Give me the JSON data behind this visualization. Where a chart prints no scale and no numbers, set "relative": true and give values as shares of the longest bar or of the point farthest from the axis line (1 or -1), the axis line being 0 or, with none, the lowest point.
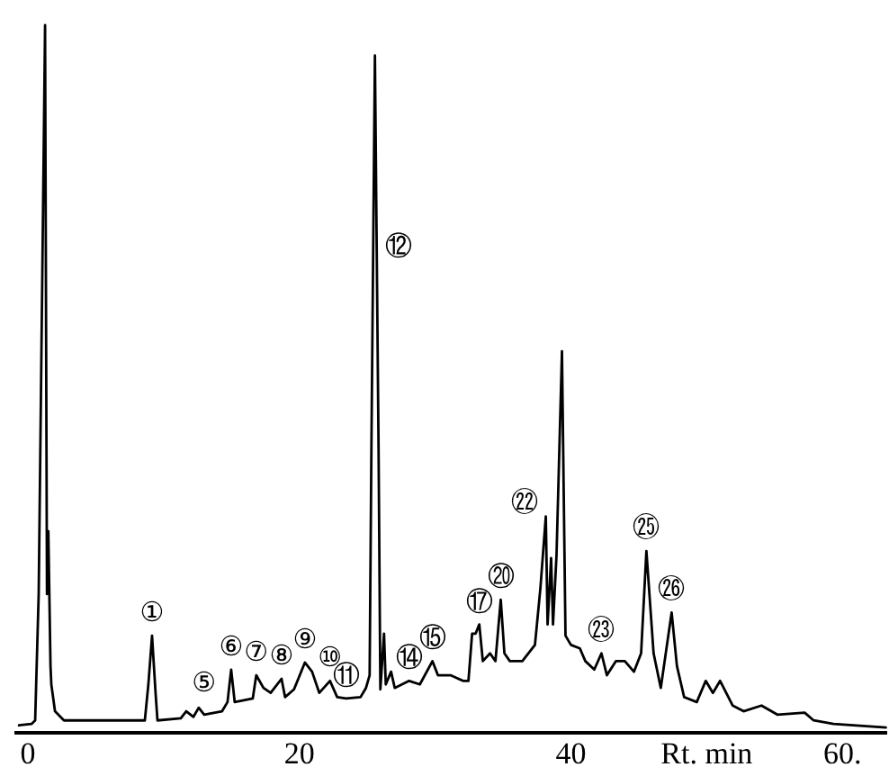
{
  "chart_data": {
    "type": "line",
    "relative": true,
    "xlabel": "Rt. min",
    "xlim": [
      -1,
      63.3
    ],
    "xticks": [
      0,
      20,
      40,
      {
        "value": 60,
        "label": "60."
      }
    ],
    "grid": false,
    "marker": "none",
    "line_style": "solid",
    "series": [
      {
        "color": "#000000",
        "x": [
          -0.66,
          0.26,
          0.53,
          0.79,
          1.06,
          1.26,
          1.4,
          1.5,
          1.66,
          1.72,
          1.99,
          2.65,
          8.61,
          8.87,
          9.14,
          9.4,
          9.54,
          11.26,
          11.66,
          12.19,
          12.58,
          12.98,
          14.3,
          14.7,
          14.97,
          15.23,
          16.56,
          16.82,
          17.35,
          17.88,
          18.68,
          18.94,
          19.6,
          20.4,
          20.93,
          21.46,
          22.25,
          22.78,
          23.44,
          24.5,
          24.9,
          25.17,
          25.3,
          25.56,
          25.7,
          25.83,
          25.96,
          26.23,
          26.36,
          26.75,
          27.02,
          28.08,
          28.87,
          29.8,
          30.2,
          31.13,
          32.05,
          32.45,
          32.72,
          32.98,
          33.25,
          33.51,
          34.04,
          34.44,
          34.83,
          35.1,
          35.5,
          36.42,
          37.35,
          37.75,
          38.15,
          38.28,
          38.54,
          38.68,
          38.94,
          39.34,
          39.6,
          40.0,
          40.66,
          41.06,
          41.72,
          42.25,
          42.65,
          43.31,
          43.97,
          44.64,
          45.17,
          45.56,
          46.09,
          46.62,
          47.42,
          47.81,
          48.34,
          49.27,
          49.93,
          50.46,
          50.99,
          51.92,
          52.72,
          54.04,
          55.23,
          57.22,
          57.88,
          59.34,
          63.2
        ],
        "values": [
          0.008,
          0.01,
          0.015,
          0.194,
          0.653,
          1.0,
          0.194,
          0.283,
          0.092,
          0.066,
          0.028,
          0.015,
          0.015,
          0.066,
          0.135,
          0.054,
          0.015,
          0.018,
          0.028,
          0.02,
          0.033,
          0.023,
          0.028,
          0.041,
          0.087,
          0.041,
          0.046,
          0.079,
          0.061,
          0.054,
          0.074,
          0.048,
          0.059,
          0.097,
          0.084,
          0.054,
          0.071,
          0.048,
          0.046,
          0.048,
          0.061,
          0.079,
          0.398,
          0.957,
          0.667,
          0.398,
          0.059,
          0.138,
          0.066,
          0.084,
          0.061,
          0.071,
          0.066,
          0.099,
          0.079,
          0.079,
          0.071,
          0.071,
          0.138,
          0.138,
          0.151,
          0.099,
          0.11,
          0.099,
          0.186,
          0.11,
          0.099,
          0.099,
          0.122,
          0.202,
          0.304,
          0.151,
          0.245,
          0.151,
          0.25,
          0.538,
          0.135,
          0.122,
          0.117,
          0.099,
          0.087,
          0.11,
          0.079,
          0.099,
          0.099,
          0.084,
          0.11,
          0.255,
          0.11,
          0.061,
          0.168,
          0.092,
          0.048,
          0.041,
          0.071,
          0.054,
          0.071,
          0.036,
          0.028,
          0.036,
          0.023,
          0.026,
          0.015,
          0.01,
          0.005
        ]
      }
    ],
    "annotations": [
      {
        "text": "①",
        "x": 9.14,
        "y": 0.135
      },
      {
        "text": "⑤",
        "x": 14.3,
        "y": 0.028
      },
      {
        "text": "⑥",
        "x": 14.97,
        "y": 0.087
      },
      {
        "text": "⑦",
        "x": 16.82,
        "y": 0.079
      },
      {
        "text": "⑧",
        "x": 18.68,
        "y": 0.074
      },
      {
        "text": "⑨",
        "x": 20.4,
        "y": 0.097
      },
      {
        "text": "⑩",
        "x": 22.25,
        "y": 0.071
      },
      {
        "text": "⑪",
        "x": 23.44,
        "y": 0.046
      },
      {
        "text": "⑫",
        "x": 25.7,
        "y": 0.667
      },
      {
        "text": "⑭",
        "x": 28.08,
        "y": 0.071
      },
      {
        "text": "⑮",
        "x": 29.8,
        "y": 0.099
      },
      {
        "text": "⑰",
        "x": 33.25,
        "y": 0.151
      },
      {
        "text": "⑳",
        "x": 34.83,
        "y": 0.186
      },
      {
        "text": "㉒",
        "x": 38.15,
        "y": 0.304
      },
      {
        "text": "㉓",
        "x": 42.25,
        "y": 0.11
      },
      {
        "text": "㉕",
        "x": 45.56,
        "y": 0.255
      },
      {
        "text": "㉖",
        "x": 47.42,
        "y": 0.168
      }
    ]
  }
}
